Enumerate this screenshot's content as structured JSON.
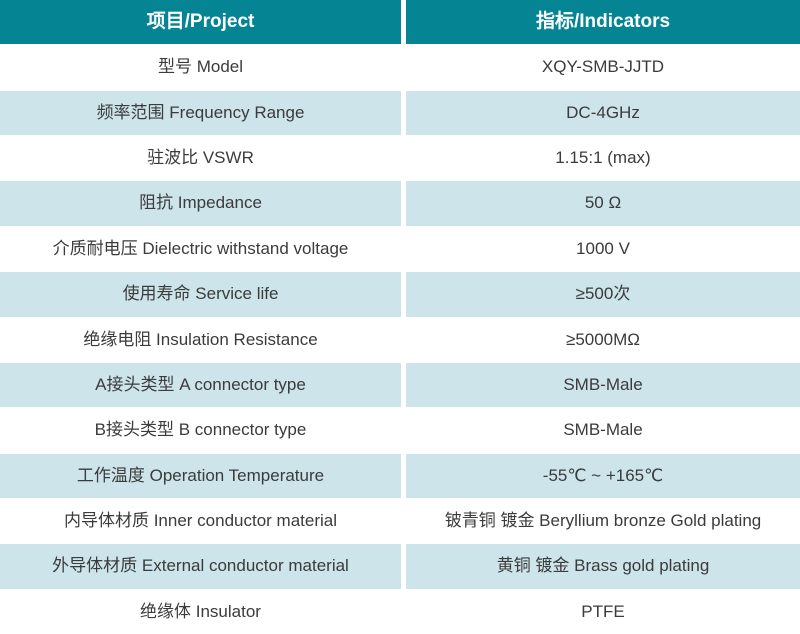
{
  "table": {
    "header": {
      "col1": "项目/Project",
      "col2": "指标/Indicators"
    },
    "rows": [
      {
        "label": "型号 Model",
        "value": "XQY-SMB-JJTD"
      },
      {
        "label": "频率范围 Frequency Range",
        "value": "DC-4GHz"
      },
      {
        "label": "驻波比 VSWR",
        "value": "1.15:1 (max)"
      },
      {
        "label": "阻抗 Impedance",
        "value": "50 Ω"
      },
      {
        "label": "介质耐电压 Dielectric withstand voltage",
        "value": "1000 V"
      },
      {
        "label": "使用寿命 Service life",
        "value": "≥500次"
      },
      {
        "label": "绝缘电阻 Insulation Resistance",
        "value": "≥5000MΩ"
      },
      {
        "label": "A接头类型 A connector type",
        "value": "SMB-Male"
      },
      {
        "label": "B接头类型 B connector type",
        "value": "SMB-Male"
      },
      {
        "label": "工作温度 Operation Temperature",
        "value": "-55℃ ~ +165℃"
      },
      {
        "label": "内导体材质 Inner conductor material",
        "value": "铍青铜 镀金 Beryllium bronze Gold plating"
      },
      {
        "label": "外导体材质 External conductor material",
        "value": "黄铜 镀金 Brass gold plating"
      },
      {
        "label": "绝缘体 Insulator",
        "value": "PTFE"
      }
    ],
    "colors": {
      "header_bg": "#058593",
      "header_text": "#ffffff",
      "row_bg": "#ffffff",
      "row_alt_bg": "#cce4ea",
      "body_text": "#3b3b3b"
    }
  }
}
